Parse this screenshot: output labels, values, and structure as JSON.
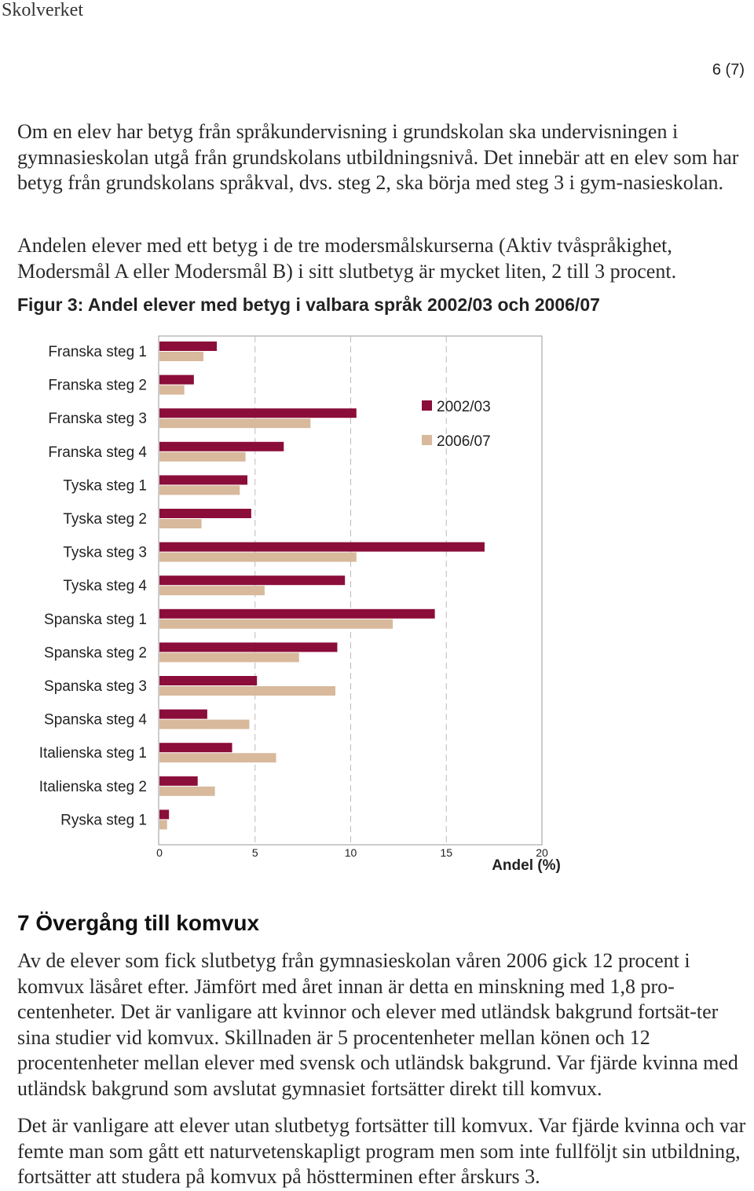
{
  "header": {
    "org": "Skolverket",
    "page": "6 (7)"
  },
  "paragraphs": {
    "p1": "Om en elev har betyg från språkundervisning i grundskolan ska undervisningen i gymnasieskolan utgå från grundskolans utbildningsnivå. Det innebär att en elev som har betyg från grundskolans språkval, dvs. steg 2, ska börja med steg 3 i gym-nasieskolan.",
    "p2": "Andelen elever med ett betyg i de tre modersmålskurserna (Aktiv tvåspråkighet, Modersmål A eller Modersmål B) i sitt slutbetyg är mycket liten, 2 till 3 procent."
  },
  "figure": {
    "title": "Figur 3: Andel elever med betyg i valbara språk 2002/03 och 2006/07"
  },
  "chart_data": {
    "type": "bar",
    "orientation": "horizontal",
    "categories": [
      "Franska steg 1",
      "Franska steg 2",
      "Franska steg 3",
      "Franska steg 4",
      "Tyska steg 1",
      "Tyska steg 2",
      "Tyska steg 3",
      "Tyska steg 4",
      "Spanska steg 1",
      "Spanska steg 2",
      "Spanska steg 3",
      "Spanska steg 4",
      "Italienska steg 1",
      "Italienska steg 2",
      "Ryska steg 1"
    ],
    "series": [
      {
        "name": "2002/03",
        "color": "#8b0d3a",
        "values": [
          3.0,
          1.8,
          10.3,
          6.5,
          4.6,
          4.8,
          17.0,
          9.7,
          14.4,
          9.3,
          5.1,
          2.5,
          3.8,
          2.0,
          0.5
        ]
      },
      {
        "name": "2006/07",
        "color": "#d8b99c",
        "values": [
          2.3,
          1.3,
          7.9,
          4.5,
          4.2,
          2.2,
          10.3,
          5.5,
          12.2,
          7.3,
          9.2,
          4.7,
          6.1,
          2.9,
          0.4
        ]
      }
    ],
    "xlabel": "Andel (%)",
    "ylabel": "",
    "xlim": [
      0,
      20
    ],
    "xticks": [
      "0",
      "5",
      "10",
      "15",
      "20"
    ],
    "grid": "vertical dashed",
    "legend": "top-right"
  },
  "section": {
    "heading": "7 Övergång till komvux"
  },
  "paragraphs2": {
    "p3": "Av de elever som fick slutbetyg från gymnasieskolan våren 2006 gick 12 procent i komvux läsåret efter. Jämfört med året innan är detta en minskning med 1,8 pro-centenheter. Det är vanligare att kvinnor och elever med utländsk bakgrund fortsät-ter sina studier vid komvux. Skillnaden är 5 procentenheter mellan könen och 12 procentenheter mellan elever med svensk och utländsk bakgrund. Var fjärde kvinna med utländsk bakgrund som avslutat gymnasiet fortsätter direkt till komvux.",
    "p4": "Det är vanligare att elever utan slutbetyg fortsätter till komvux. Var fjärde kvinna och var femte man som gått ett naturvetenskapligt program men som inte fullföljt sin utbildning, fortsätter att studera på komvux på höstterminen efter årskurs 3."
  }
}
